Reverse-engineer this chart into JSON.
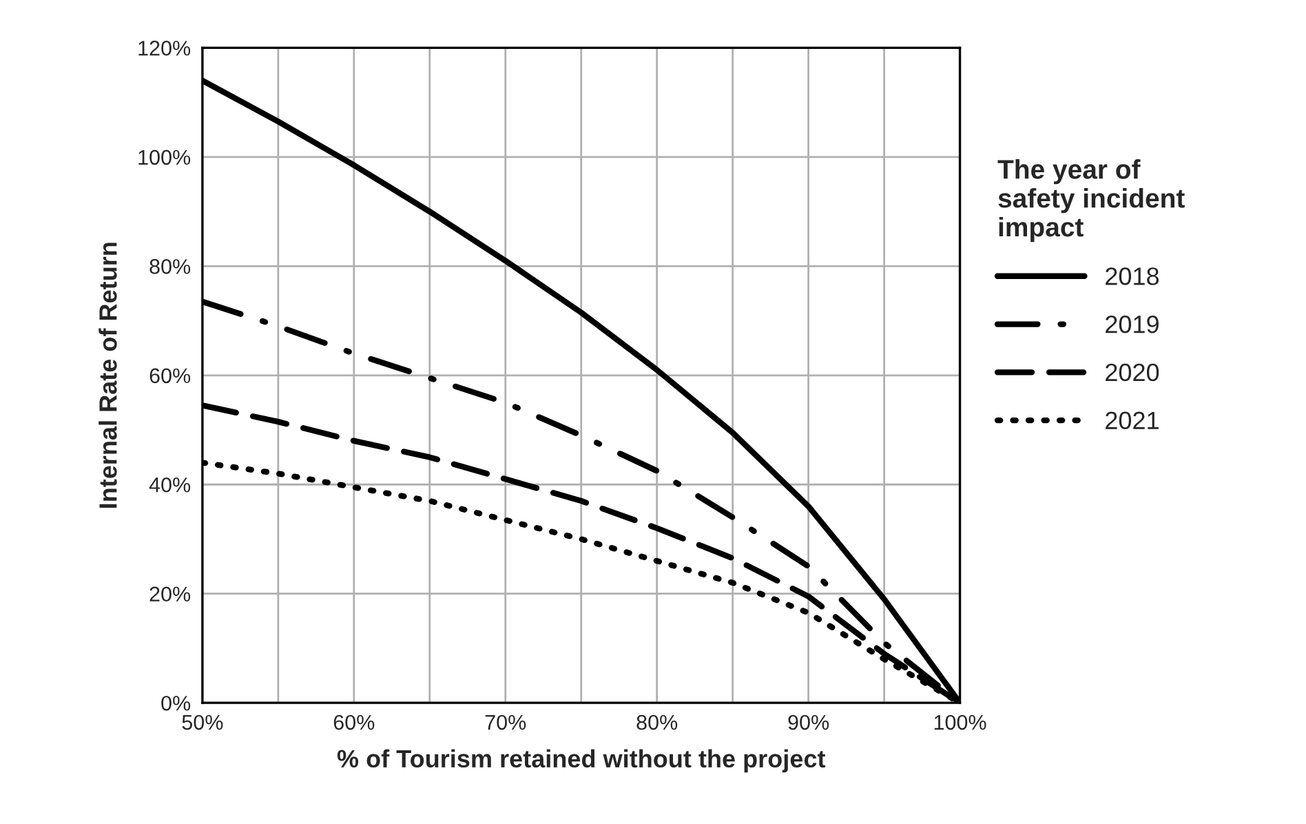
{
  "chart_data": {
    "type": "line",
    "xlabel": "% of Tourism retained without the project",
    "ylabel": "Internal Rate of Return",
    "legend_title": "The year of\nsafety incident\nimpact",
    "legend": "right",
    "x": [
      50,
      55,
      60,
      65,
      70,
      75,
      80,
      85,
      90,
      95,
      100
    ],
    "series": [
      {
        "name": "2018",
        "color": "#000000",
        "line_style": "solid",
        "values": [
          114,
          106.5,
          98.5,
          90,
          81,
          71.5,
          61,
          49.5,
          36,
          19,
          0
        ]
      },
      {
        "name": "2019",
        "color": "#000000",
        "line_style": "dashdot",
        "values": [
          73.5,
          69,
          64,
          59.5,
          55,
          49,
          42.5,
          34,
          25,
          11,
          0
        ]
      },
      {
        "name": "2020",
        "color": "#000000",
        "line_style": "dashed",
        "values": [
          54.5,
          51.5,
          48,
          45,
          41,
          37,
          32,
          26.5,
          19.5,
          9,
          0
        ]
      },
      {
        "name": "2021",
        "color": "#000000",
        "line_style": "dotted",
        "values": [
          44,
          42,
          39.5,
          37,
          33.5,
          30,
          26,
          22,
          16.5,
          8,
          0
        ]
      }
    ],
    "xlim": [
      50,
      100
    ],
    "xticks": [
      {
        "value": 50,
        "label": "50%"
      },
      {
        "value": 55,
        "label": null
      },
      {
        "value": 60,
        "label": "60%"
      },
      {
        "value": 65,
        "label": null
      },
      {
        "value": 70,
        "label": "70%"
      },
      {
        "value": 75,
        "label": null
      },
      {
        "value": 80,
        "label": "80%"
      },
      {
        "value": 85,
        "label": null
      },
      {
        "value": 90,
        "label": "90%"
      },
      {
        "value": 95,
        "label": null
      },
      {
        "value": 100,
        "label": "100%"
      }
    ],
    "ylim": [
      0,
      120
    ],
    "yticks": [
      {
        "value": 0,
        "label": "0%"
      },
      {
        "value": 20,
        "label": "20%"
      },
      {
        "value": 40,
        "label": "40%"
      },
      {
        "value": 60,
        "label": "60%"
      },
      {
        "value": 80,
        "label": "80%"
      },
      {
        "value": 100,
        "label": "100%"
      },
      {
        "value": 120,
        "label": "120%"
      }
    ],
    "grid": true,
    "marker": "none"
  }
}
